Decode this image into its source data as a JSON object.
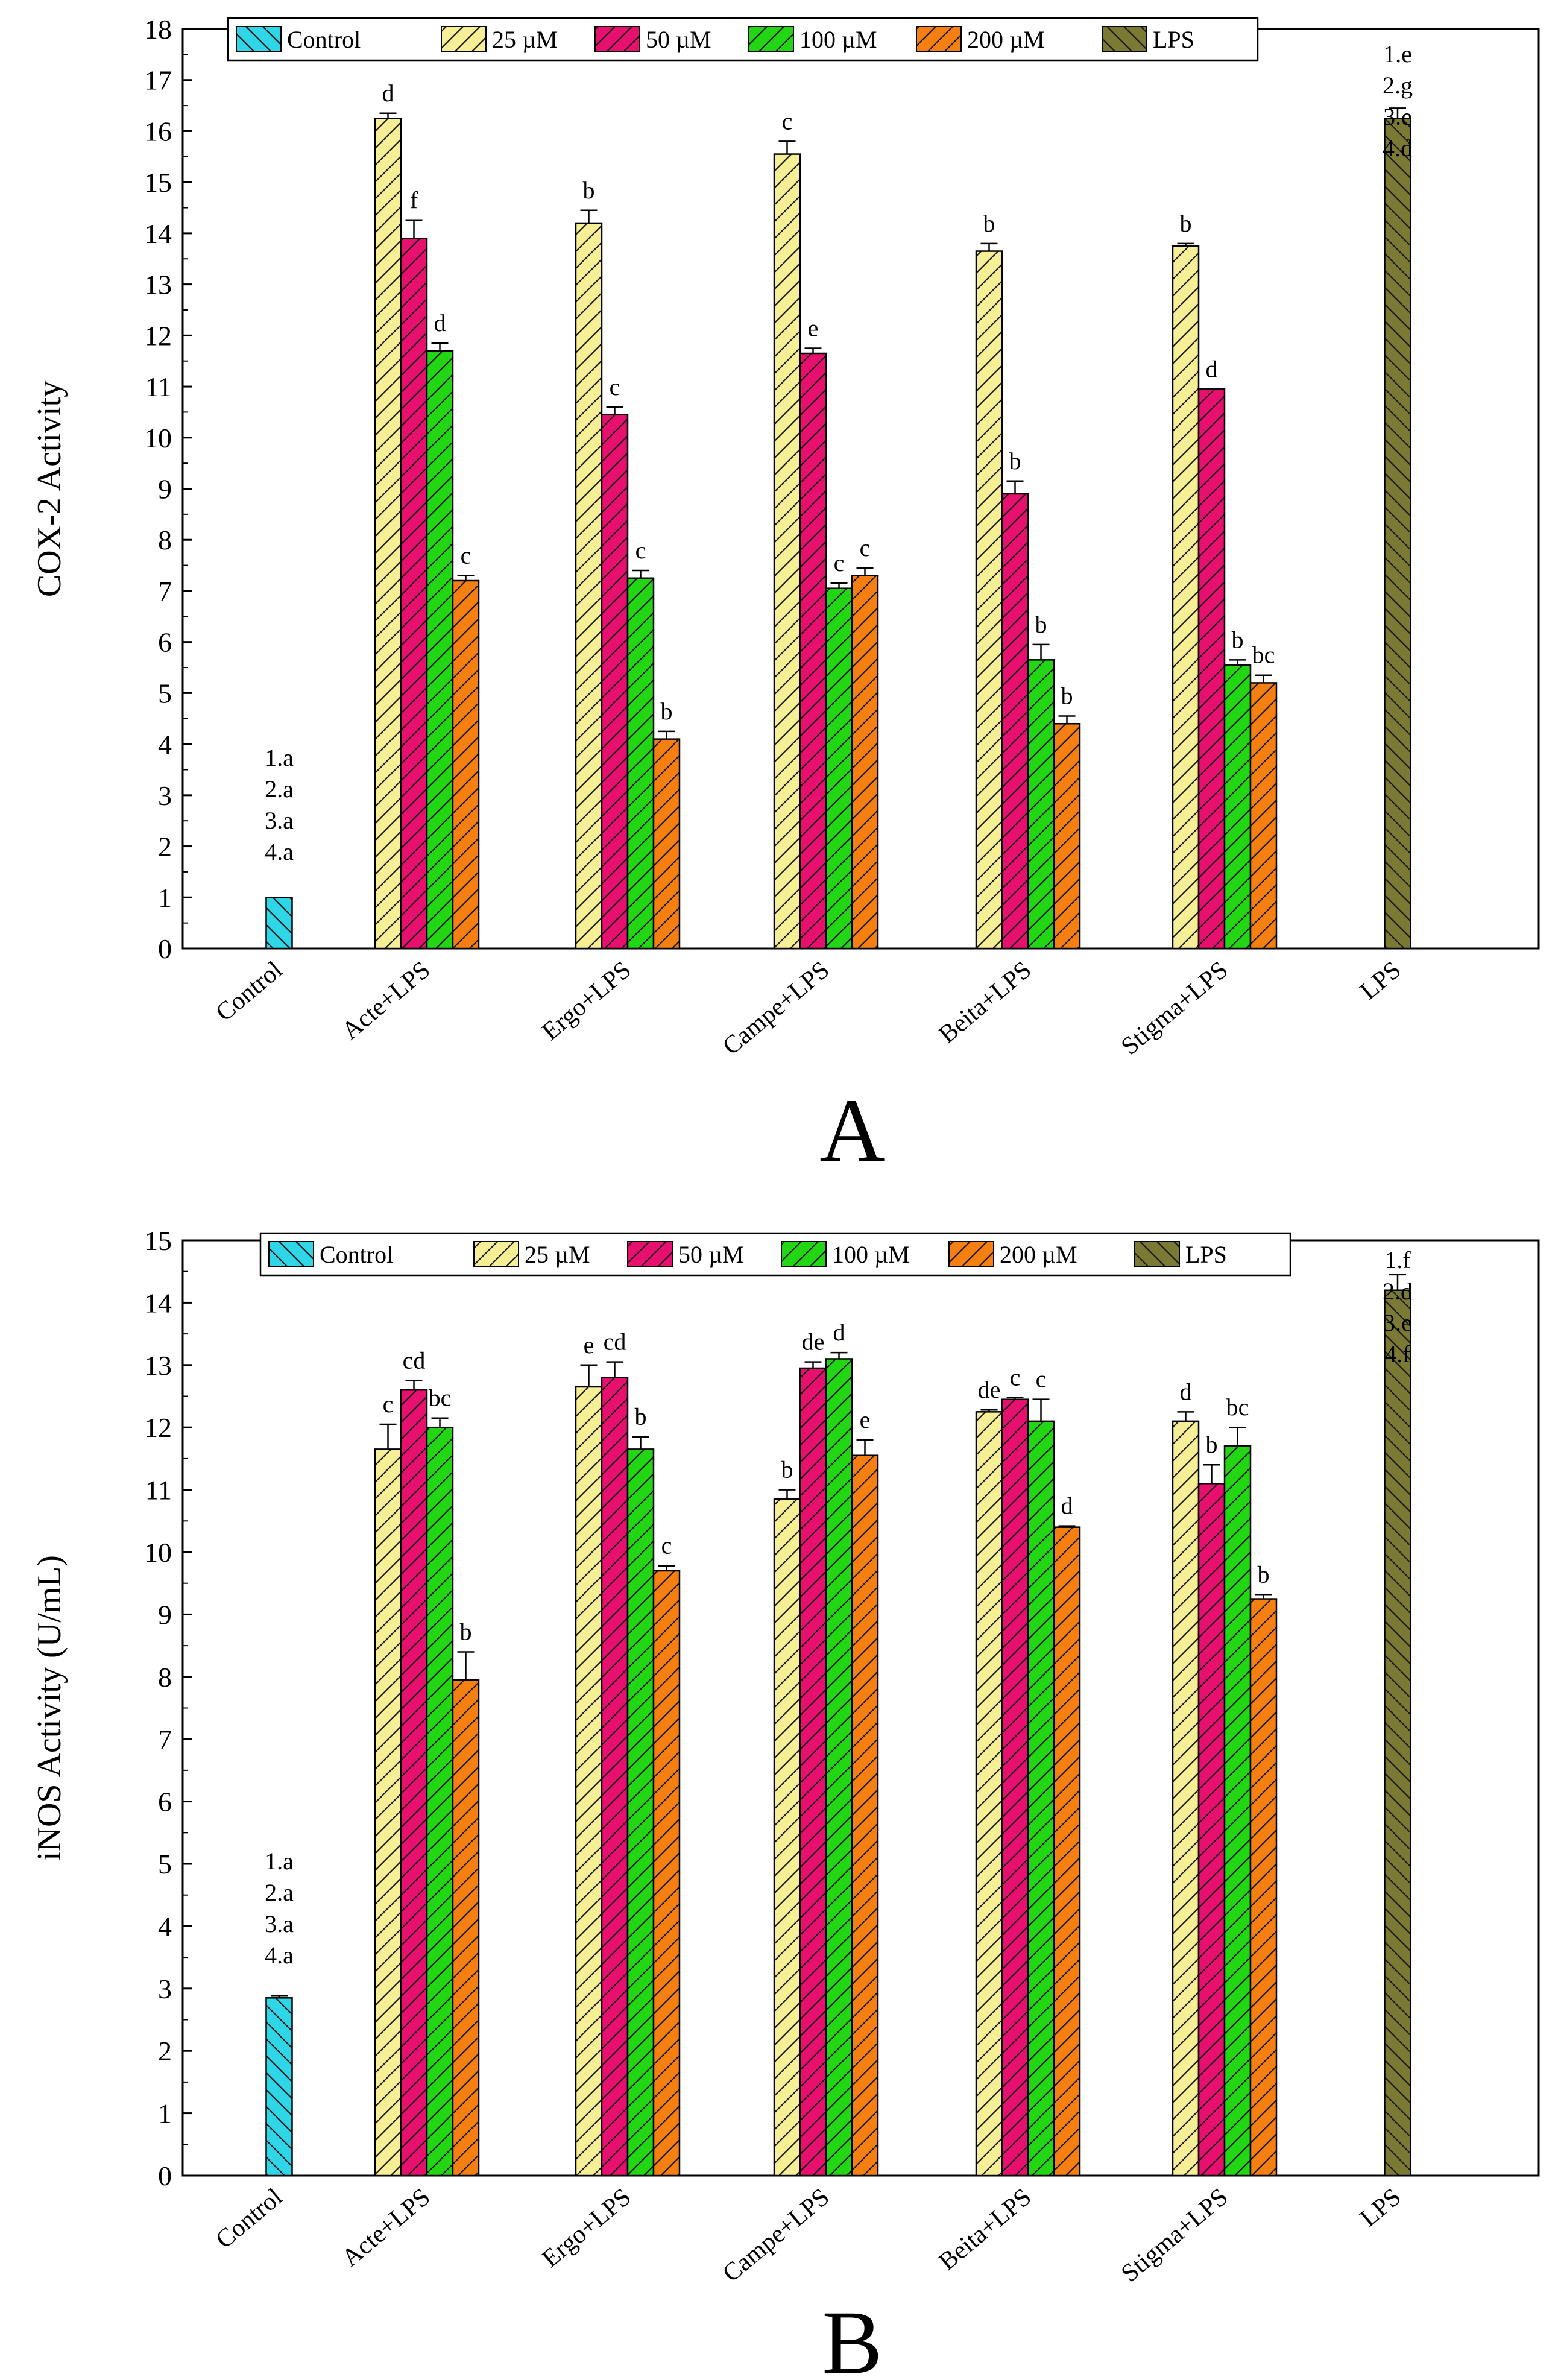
{
  "figure": {
    "panels": [
      "A",
      "B"
    ]
  },
  "colors": {
    "Control": "#2fd6e8",
    "25 µM": "#f7ef96",
    "50 µM": "#e8106e",
    "100 µM": "#22d614",
    "200 µM": "#f57f10",
    "LPS": "#7b7a35"
  },
  "chart_data": [
    {
      "panel": "A",
      "type": "bar",
      "title": "",
      "xlabel": "",
      "ylabel": "COX-2 Activity",
      "ylim": [
        0,
        18
      ],
      "yticks": [
        0,
        1,
        2,
        3,
        4,
        5,
        6,
        7,
        8,
        9,
        10,
        11,
        12,
        13,
        14,
        15,
        16,
        17,
        18
      ],
      "legend_position": "top",
      "legend": [
        "Control",
        "25 µM",
        "50 µM",
        "100 µM",
        "200 µM",
        "LPS"
      ],
      "categories": [
        "Control",
        "Acte+LPS",
        "Ergo+LPS",
        "Campe+LPS",
        "Beita+LPS",
        "Stigma+LPS",
        "LPS"
      ],
      "series": [
        {
          "name": "Control",
          "values": [
            1.0,
            null,
            null,
            null,
            null,
            null,
            null
          ],
          "errors": [
            0,
            null,
            null,
            null,
            null,
            null,
            null
          ],
          "labels": [
            "",
            null,
            null,
            null,
            null,
            null,
            null
          ]
        },
        {
          "name": "25 µM",
          "values": [
            null,
            16.25,
            14.2,
            15.55,
            13.65,
            13.75,
            null
          ],
          "errors": [
            null,
            0.1,
            0.25,
            0.25,
            0.15,
            0.05,
            null
          ],
          "labels": [
            null,
            "d",
            "b",
            "c",
            "b",
            "b",
            null
          ]
        },
        {
          "name": "50 µM",
          "values": [
            null,
            13.9,
            10.45,
            11.65,
            8.9,
            10.95,
            null
          ],
          "errors": [
            null,
            0.35,
            0.15,
            0.1,
            0.25,
            0,
            null
          ],
          "labels": [
            null,
            "f",
            "c",
            "e",
            "b",
            "d",
            null
          ]
        },
        {
          "name": "100 µM",
          "values": [
            null,
            11.7,
            7.25,
            7.05,
            5.65,
            5.55,
            null
          ],
          "errors": [
            null,
            0.15,
            0.15,
            0.1,
            0.3,
            0.1,
            null
          ],
          "labels": [
            null,
            "d",
            "c",
            "c",
            "b",
            "b",
            null
          ]
        },
        {
          "name": "200 µM",
          "values": [
            null,
            7.2,
            4.1,
            7.3,
            4.4,
            5.2,
            null
          ],
          "errors": [
            null,
            0.1,
            0.15,
            0.15,
            0.15,
            0.15,
            null
          ],
          "labels": [
            null,
            "c",
            "b",
            "c",
            "b",
            "bc",
            null
          ]
        },
        {
          "name": "LPS",
          "values": [
            null,
            null,
            null,
            null,
            null,
            null,
            16.25
          ],
          "errors": [
            null,
            null,
            null,
            null,
            null,
            null,
            0.2
          ],
          "labels": [
            null,
            null,
            null,
            null,
            null,
            null,
            ""
          ]
        }
      ],
      "group_annotations": [
        {
          "category": "Control",
          "lines": [
            "1.a",
            "2.a",
            "3.a",
            "4.a"
          ]
        },
        {
          "category": "LPS",
          "lines": [
            "1.e",
            "2.g",
            "3.e",
            "4.d"
          ]
        }
      ],
      "panel_label": "A"
    },
    {
      "panel": "B",
      "type": "bar",
      "title": "",
      "xlabel": "",
      "ylabel": "iNOS Activity (U/mL)",
      "ylim": [
        0,
        15
      ],
      "yticks": [
        0,
        1,
        2,
        3,
        4,
        5,
        6,
        7,
        8,
        9,
        10,
        11,
        12,
        13,
        14,
        15
      ],
      "legend_position": "top",
      "legend": [
        "Control",
        "25 µM",
        "50 µM",
        "100 µM",
        "200 µM",
        "LPS"
      ],
      "categories": [
        "Control",
        "Acte+LPS",
        "Ergo+LPS",
        "Campe+LPS",
        "Beita+LPS",
        "Stigma+LPS",
        "LPS"
      ],
      "series": [
        {
          "name": "Control",
          "values": [
            2.85,
            null,
            null,
            null,
            null,
            null,
            null
          ],
          "errors": [
            0.03,
            null,
            null,
            null,
            null,
            null,
            null
          ],
          "labels": [
            "",
            null,
            null,
            null,
            null,
            null,
            null
          ]
        },
        {
          "name": "25 µM",
          "values": [
            null,
            11.65,
            12.65,
            10.85,
            12.25,
            12.1,
            null
          ],
          "errors": [
            null,
            0.4,
            0.35,
            0.15,
            0.03,
            0.15,
            null
          ],
          "labels": [
            null,
            "c",
            "e",
            "b",
            "de",
            "d",
            null
          ]
        },
        {
          "name": "50 µM",
          "values": [
            null,
            12.6,
            12.8,
            12.95,
            12.45,
            11.1,
            null
          ],
          "errors": [
            null,
            0.15,
            0.25,
            0.1,
            0.03,
            0.3,
            null
          ],
          "labels": [
            null,
            "cd",
            "cd",
            "de",
            "c",
            "b",
            null
          ]
        },
        {
          "name": "100 µM",
          "values": [
            null,
            12.0,
            11.65,
            13.1,
            12.1,
            11.7,
            null
          ],
          "errors": [
            null,
            0.15,
            0.2,
            0.1,
            0.35,
            0.3,
            null
          ],
          "labels": [
            null,
            "bc",
            "b",
            "d",
            "c",
            "bc",
            null
          ]
        },
        {
          "name": "200 µM",
          "values": [
            null,
            7.95,
            9.7,
            11.55,
            10.4,
            9.25,
            null
          ],
          "errors": [
            null,
            0.45,
            0.08,
            0.25,
            0.02,
            0.07,
            null
          ],
          "labels": [
            null,
            "b",
            "c",
            "e",
            "d",
            "b",
            null
          ]
        },
        {
          "name": "LPS",
          "values": [
            null,
            null,
            null,
            null,
            null,
            null,
            14.2
          ],
          "errors": [
            null,
            null,
            null,
            null,
            null,
            null,
            0.25
          ],
          "labels": [
            null,
            null,
            null,
            null,
            null,
            null,
            ""
          ]
        }
      ],
      "group_annotations": [
        {
          "category": "Control",
          "lines": [
            "1.a",
            "2.a",
            "3.a",
            "4.a"
          ]
        },
        {
          "category": "LPS",
          "lines": [
            "1.f",
            "2.d",
            "3.e",
            "4.f"
          ]
        }
      ],
      "panel_label": "B"
    }
  ]
}
